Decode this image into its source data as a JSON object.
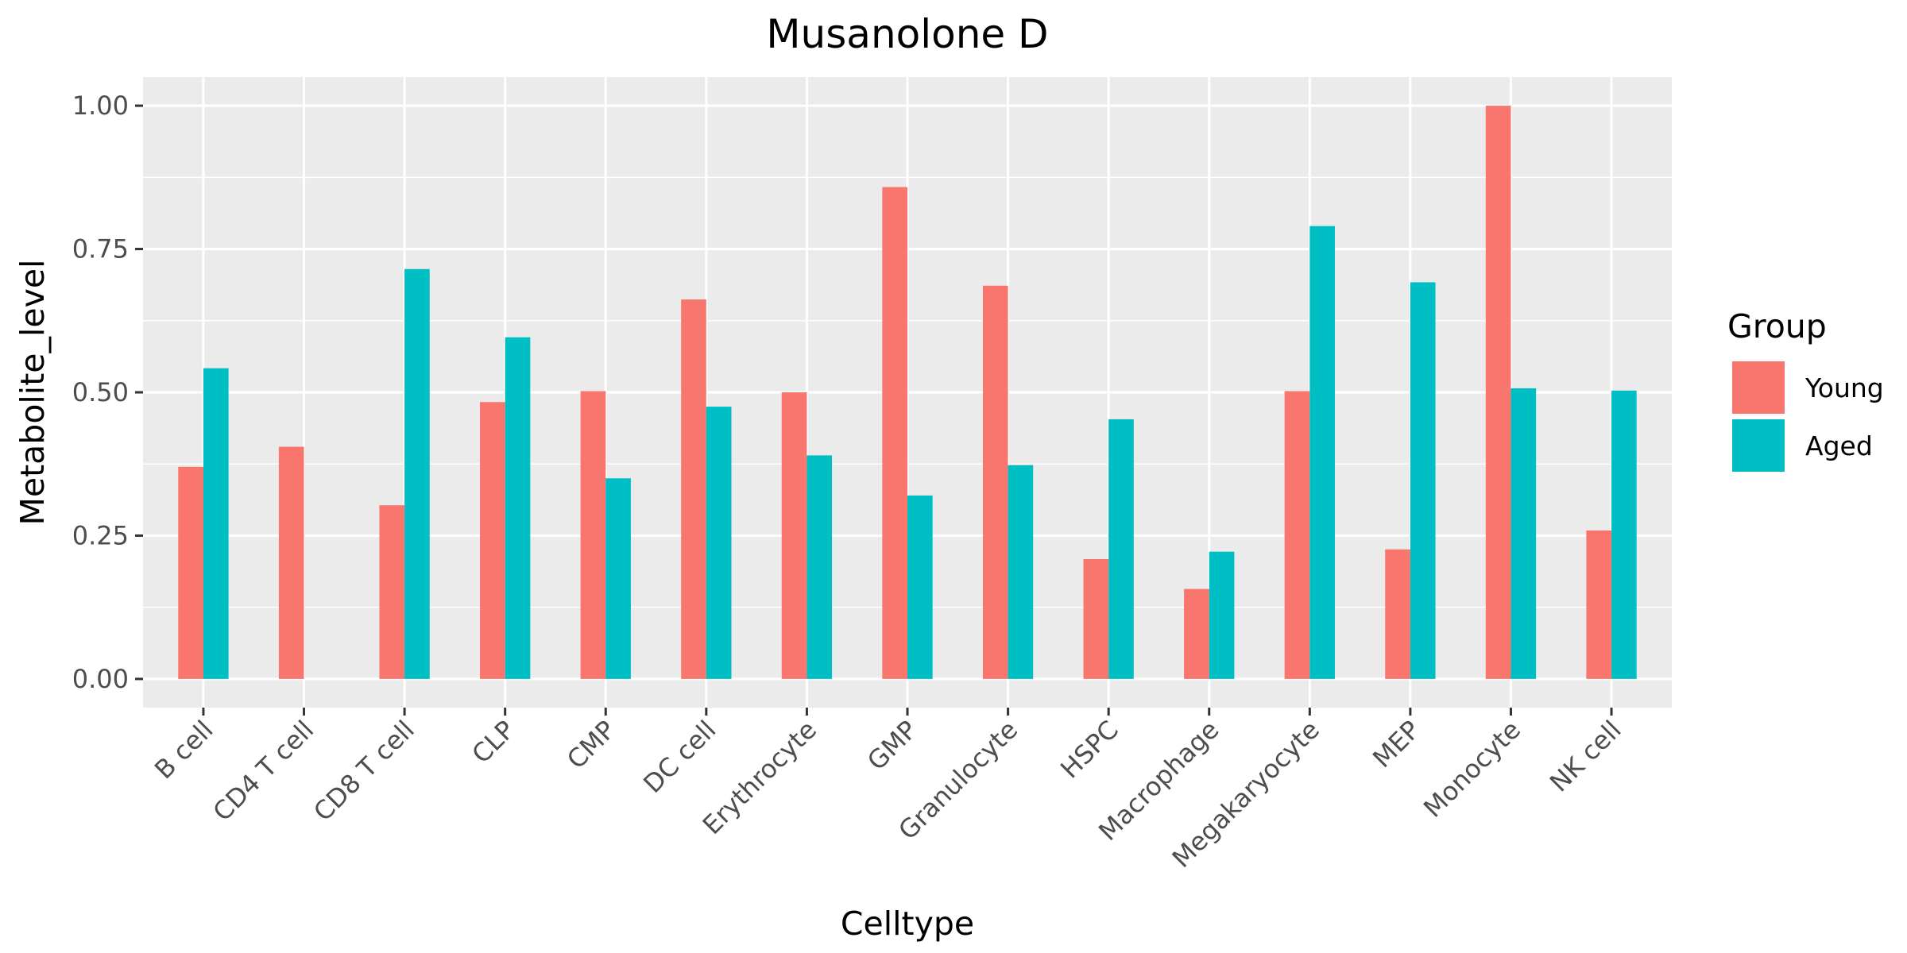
{
  "chart_data": {
    "type": "bar",
    "title": "Musanolone D",
    "xlabel": "Celltype",
    "ylabel": "Metabolite_level",
    "categories": [
      "B cell",
      "CD4 T cell",
      "CD8 T cell",
      "CLP",
      "CMP",
      "DC cell",
      "Erythrocyte",
      "GMP",
      "Granulocyte",
      "HSPC",
      "Macrophage",
      "Megakaryocyte",
      "MEP",
      "Monocyte",
      "NK cell"
    ],
    "series": [
      {
        "name": "Young",
        "color": "#F8766D",
        "values": [
          0.37,
          0.405,
          0.303,
          0.483,
          0.502,
          0.662,
          0.5,
          0.858,
          0.686,
          0.209,
          0.157,
          0.502,
          0.226,
          1.0,
          0.259
        ]
      },
      {
        "name": "Aged",
        "color": "#00BFC4",
        "values": [
          0.542,
          null,
          0.715,
          0.596,
          0.35,
          0.475,
          0.39,
          0.32,
          0.373,
          0.453,
          0.222,
          0.79,
          0.692,
          0.507,
          0.503
        ]
      }
    ],
    "ylim": [
      -0.05,
      1.05
    ],
    "yticks": [
      0.0,
      0.25,
      0.5,
      0.75,
      1.0
    ],
    "ytick_labels": [
      "0.00",
      "0.25",
      "0.50",
      "0.75",
      "1.00"
    ],
    "legend": {
      "title": "Group",
      "position": "right"
    },
    "grid": true,
    "panel_color": "#EBEBEB"
  }
}
